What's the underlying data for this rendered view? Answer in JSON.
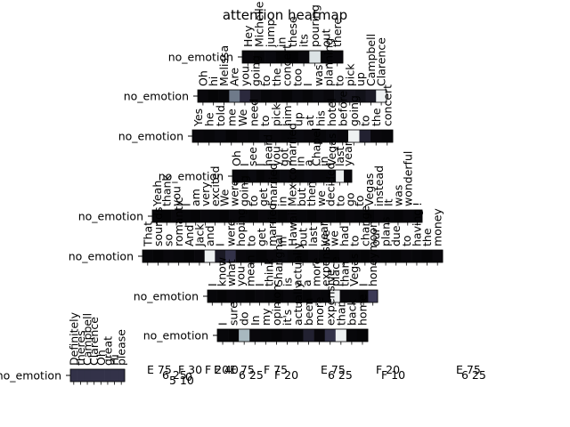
{
  "chart_data": {
    "type": "heatmap",
    "title": "attention heatmap",
    "rows": [
      {
        "label": "no_emotion",
        "tokens": [
          "Hey",
          "Michelle",
          "jump",
          "in",
          "these",
          "its",
          "pouring",
          "out",
          "there"
        ],
        "values": [
          0.05,
          0.04,
          0.06,
          0.03,
          0.02,
          0.05,
          0.9,
          0.04,
          0.05
        ]
      },
      {
        "label": "no_emotion",
        "tokens": [
          "Oh",
          "hi",
          "Melissa",
          "Are",
          "you",
          "going",
          "to",
          "the",
          "concert",
          "too",
          "I",
          "was",
          "planning",
          "to",
          "pick",
          "up",
          "Campbell",
          "Clarence"
        ],
        "values": [
          0.05,
          0.03,
          0.04,
          0.55,
          0.25,
          0.08,
          0.04,
          0.05,
          0.03,
          0.06,
          0.04,
          0.07,
          0.05,
          0.1,
          0.12,
          0.1,
          0.15,
          0.95
        ]
      },
      {
        "label": "no_emotion",
        "tokens": [
          "Yes",
          "he",
          "told",
          "me",
          "We",
          "need",
          "to",
          "pick",
          "him",
          "up",
          "at",
          "his",
          "hotel",
          "before",
          "going",
          "to",
          "the",
          "concert"
        ],
        "values": [
          0.05,
          0.04,
          0.06,
          0.03,
          0.05,
          0.04,
          0.06,
          0.05,
          0.04,
          0.06,
          0.05,
          0.04,
          0.06,
          0.05,
          0.95,
          0.2,
          0.05,
          0.04
        ]
      },
      {
        "label": "no_emotion",
        "tokens": [
          "Oh",
          "I",
          "see",
          "I",
          "heard",
          "you",
          "got",
          "married",
          "in",
          "a",
          "Chapel",
          "in",
          "Vegas",
          "last",
          "year"
        ],
        "values": [
          0.05,
          0.04,
          0.06,
          0.03,
          0.05,
          0.04,
          0.06,
          0.05,
          0.04,
          0.06,
          0.05,
          0.04,
          0.06,
          0.95,
          0.05
        ]
      },
      {
        "label": "no_emotion",
        "tokens": [
          "Yeah",
          "thank",
          "you",
          "I",
          "am",
          "very",
          "excited",
          "We",
          "were",
          "going",
          "to",
          "get",
          "married",
          "in",
          "Mexico",
          "but",
          "then",
          "we",
          "decided",
          "to",
          "go",
          "to",
          "Vegas",
          "instead",
          "It",
          "was",
          "wonderful",
          "!"
        ],
        "values": [
          0.04,
          0.03,
          0.05,
          0.04,
          0.03,
          0.05,
          0.04,
          0.03,
          0.05,
          0.04,
          0.03,
          0.05,
          0.04,
          0.03,
          0.05,
          0.04,
          0.03,
          0.05,
          0.04,
          0.03,
          0.05,
          0.04,
          0.03,
          0.05,
          0.04,
          0.03,
          0.05,
          0.04
        ]
      },
      {
        "label": "no_emotion",
        "tokens": [
          "That",
          "sounds",
          "so",
          "romantic",
          "And",
          "Jack",
          "and",
          "I",
          "were",
          "hoping",
          "to",
          "get",
          "married",
          "in",
          "Hawaii",
          "but",
          "last",
          "year",
          "we",
          "had",
          "to",
          "change",
          "our",
          "plans",
          "due",
          "to",
          "having",
          "the",
          "money"
        ],
        "values": [
          0.04,
          0.03,
          0.05,
          0.04,
          0.03,
          0.05,
          0.95,
          0.15,
          0.3,
          0.05,
          0.04,
          0.03,
          0.05,
          0.06,
          0.04,
          0.03,
          0.05,
          0.04,
          0.03,
          0.05,
          0.04,
          0.03,
          0.05,
          0.04,
          0.03,
          0.05,
          0.04,
          0.03,
          0.05
        ]
      },
      {
        "label": "no_emotion",
        "tokens": [
          "I",
          "know",
          "what",
          "you",
          "mean",
          "I",
          "think",
          "Shanghai",
          "is",
          "actually",
          "a",
          "more",
          "expensive",
          "place",
          "than",
          "Vegas",
          "I",
          "honeymoon"
        ],
        "values": [
          0.04,
          0.03,
          0.05,
          0.04,
          0.03,
          0.05,
          0.04,
          0.03,
          0.05,
          0.04,
          0.03,
          0.05,
          0.04,
          0.95,
          0.05,
          0.04,
          0.03,
          0.35
        ]
      },
      {
        "label": "no_emotion",
        "tokens": [
          "I",
          "sure",
          "do",
          "In",
          "my",
          "opinion",
          "it's",
          "actually",
          "been",
          "more",
          "expensive",
          "than",
          "back",
          "home"
        ],
        "values": [
          0.04,
          0.03,
          0.75,
          0.05,
          0.04,
          0.03,
          0.05,
          0.04,
          0.2,
          0.05,
          0.3,
          0.95,
          0.04,
          0.03
        ]
      },
      {
        "label": "no_emotion",
        "tokens": [
          "Definitely",
          "theres",
          "Campbell",
          "Clarence",
          "Oh",
          "great",
          "Hi",
          "please"
        ],
        "values": [
          0.3,
          0.3,
          0.3,
          0.3,
          0.3,
          0.3,
          0.3,
          0.3
        ]
      }
    ],
    "bottom_tick_labels": [
      "E 75",
      "6 25",
      "5 10",
      "F 30",
      "0",
      "F 20",
      "E 40",
      "E 75",
      "6 25",
      "F 75",
      "F 20",
      "E 75",
      "6 25",
      "F 20",
      "F 10",
      "E 75",
      "6 25"
    ]
  }
}
